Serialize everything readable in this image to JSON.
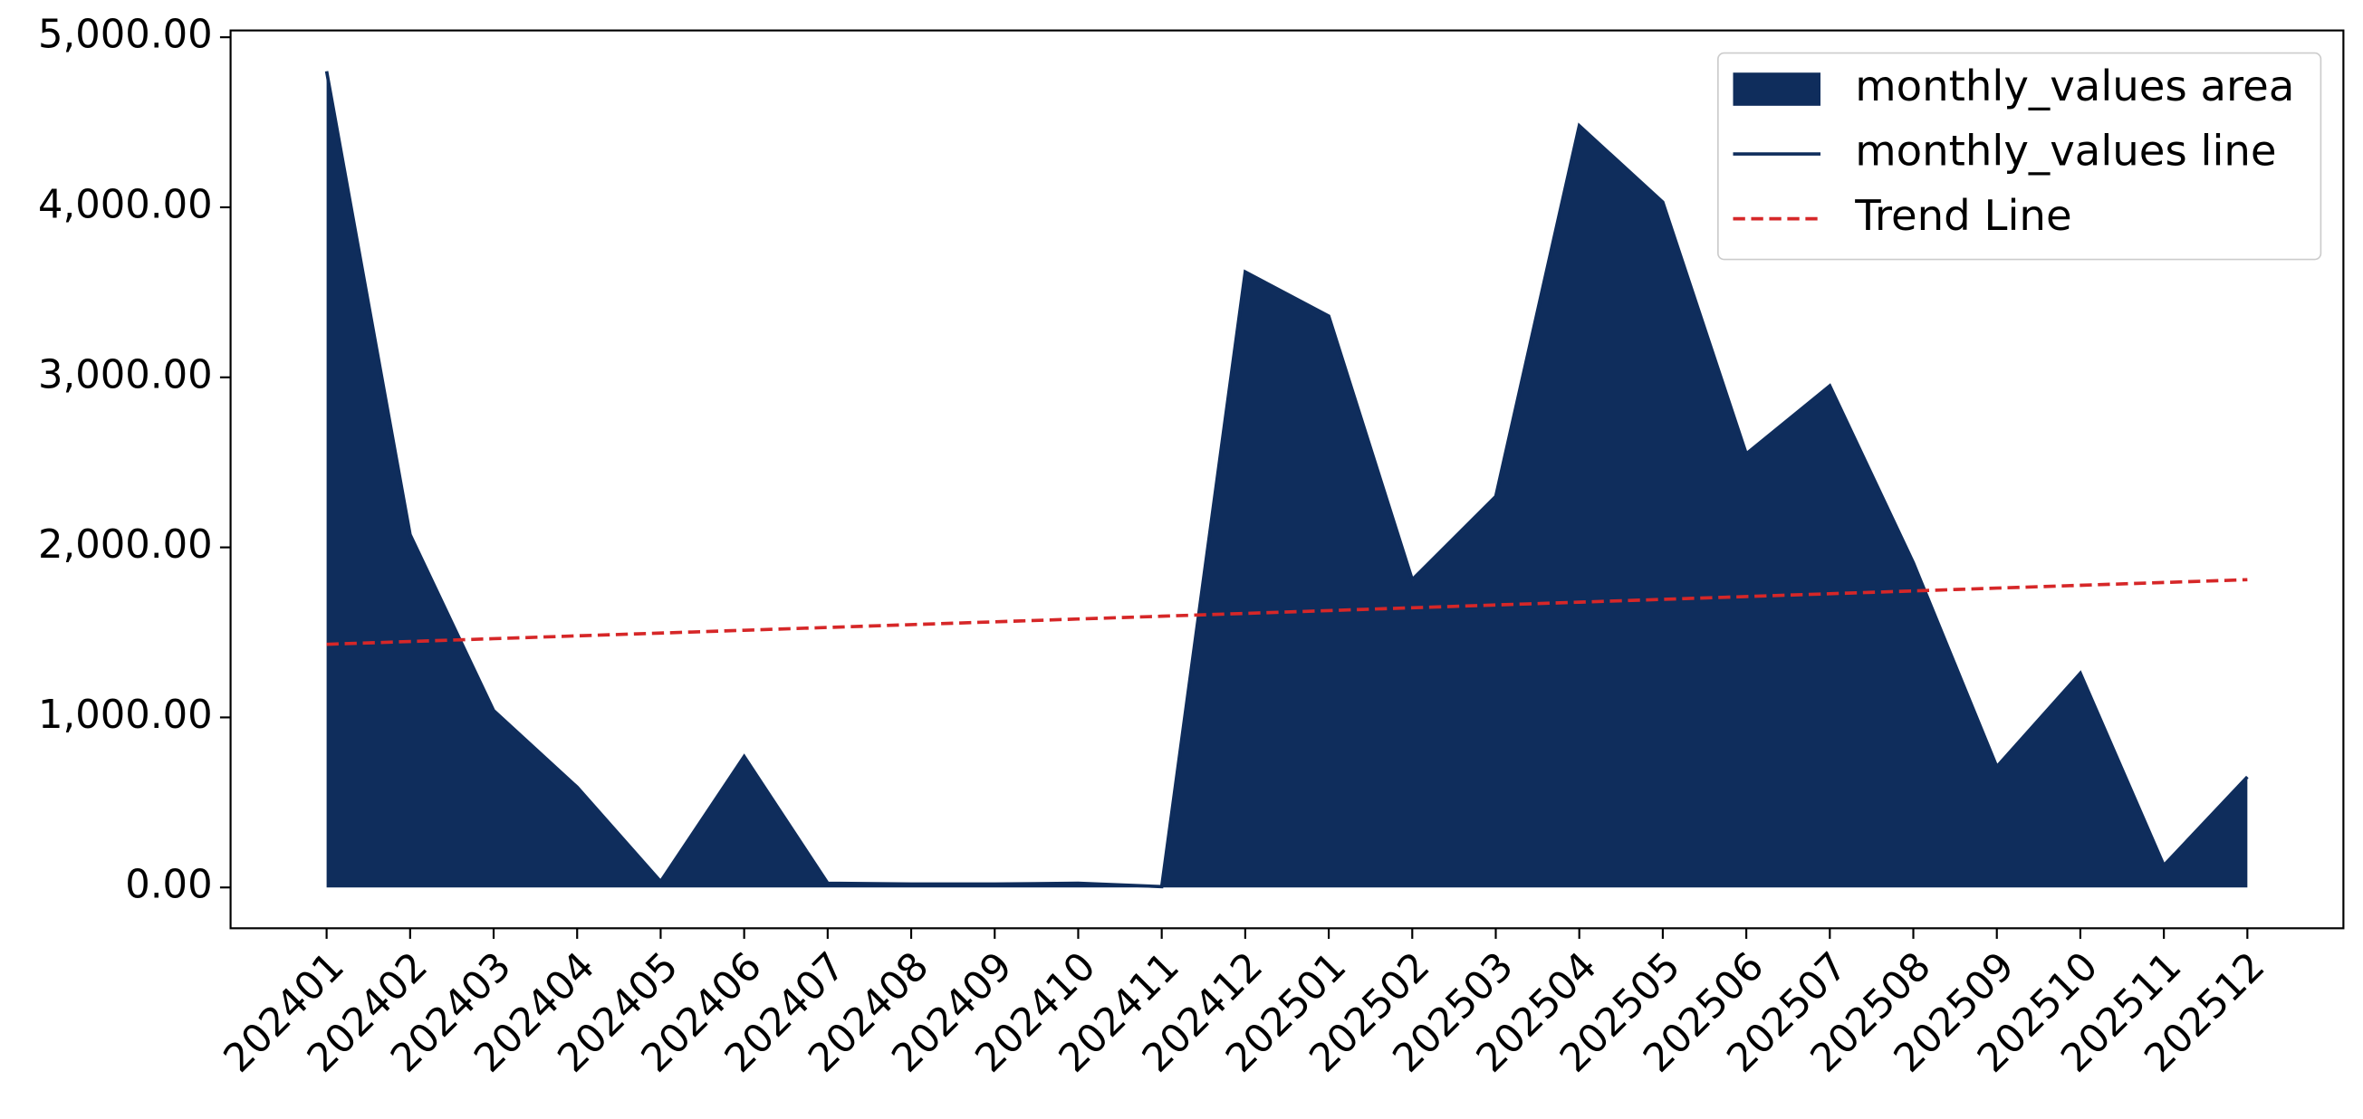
{
  "chart_data": {
    "type": "area",
    "categories": [
      "202401",
      "202402",
      "202403",
      "202404",
      "202405",
      "202406",
      "202407",
      "202408",
      "202409",
      "202410",
      "202411",
      "202412",
      "202501",
      "202502",
      "202503",
      "202504",
      "202505",
      "202506",
      "202507",
      "202508",
      "202509",
      "202510",
      "202511",
      "202512"
    ],
    "series": [
      {
        "name": "monthly_values area",
        "color": "#0f2d5c",
        "kind": "area",
        "values": [
          4800,
          2075,
          1040,
          590,
          35,
          770,
          25,
          20,
          20,
          25,
          5,
          3620,
          3360,
          1810,
          2300,
          4480,
          4030,
          2550,
          2950,
          1910,
          710,
          1260,
          130,
          650
        ]
      },
      {
        "name": "monthly_values line",
        "color": "#0f2d5c",
        "kind": "line",
        "values": [
          4800,
          2075,
          1040,
          590,
          35,
          770,
          25,
          20,
          20,
          25,
          5,
          3620,
          3360,
          1810,
          2300,
          4480,
          4030,
          2550,
          2950,
          1910,
          710,
          1260,
          130,
          650
        ]
      },
      {
        "name": "Trend Line",
        "color": "#d62728",
        "kind": "dashed",
        "values": [
          1430,
          1446.5,
          1463,
          1479.6,
          1496.1,
          1512.6,
          1529.1,
          1545.7,
          1562.2,
          1578.7,
          1595.2,
          1611.7,
          1628.3,
          1644.8,
          1661.3,
          1677.8,
          1694.3,
          1710.9,
          1727.4,
          1743.9,
          1760.4,
          1777,
          1793.5,
          1810
        ]
      }
    ],
    "ylim": [
      -240,
      5040
    ],
    "yticks": [
      {
        "value": 0,
        "label": "0.00"
      },
      {
        "value": 1000,
        "label": "1,000.00"
      },
      {
        "value": 2000,
        "label": "2,000.00"
      },
      {
        "value": 3000,
        "label": "3,000.00"
      },
      {
        "value": 4000,
        "label": "4,000.00"
      },
      {
        "value": 5000,
        "label": "5,000.00"
      }
    ],
    "legend": "upper right"
  }
}
